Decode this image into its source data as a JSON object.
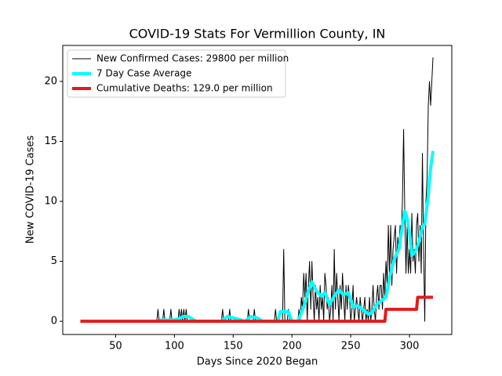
{
  "chart_data": {
    "type": "line",
    "title": "COVID-19 Stats For Vermillion County, IN",
    "xlabel": "Days Since 2020 Began",
    "ylabel": "New COVID-19 Cases",
    "xlim": [
      5,
      336
    ],
    "ylim": [
      -1.1,
      23.0
    ],
    "xticks": [
      50,
      100,
      150,
      200,
      250,
      300
    ],
    "yticks": [
      0,
      5,
      10,
      15,
      20
    ],
    "legend": "upper left",
    "series": [
      {
        "name": "New Confirmed Cases: 29800 per million",
        "color": "#000000",
        "linewidth": 1,
        "x": [
          20,
          85,
          86,
          87,
          90,
          91,
          92,
          96,
          97,
          98,
          103,
          104,
          105,
          106,
          107,
          108,
          109,
          110,
          111,
          112,
          140,
          141,
          142,
          146,
          147,
          148,
          162,
          163,
          164,
          167,
          168,
          169,
          185,
          186,
          187,
          192,
          193,
          194,
          196,
          197,
          198,
          205,
          206,
          207,
          208,
          209,
          210,
          211,
          212,
          213,
          214,
          215,
          216,
          217,
          218,
          219,
          220,
          221,
          222,
          223,
          224,
          225,
          226,
          227,
          228,
          229,
          230,
          231,
          232,
          233,
          234,
          235,
          236,
          237,
          238,
          239,
          240,
          241,
          242,
          243,
          244,
          245,
          246,
          247,
          248,
          249,
          250,
          251,
          252,
          253,
          254,
          255,
          256,
          257,
          258,
          259,
          260,
          261,
          262,
          263,
          264,
          265,
          266,
          267,
          268,
          269,
          270,
          271,
          272,
          273,
          274,
          275,
          276,
          277,
          278,
          279,
          280,
          281,
          282,
          283,
          284,
          285,
          286,
          287,
          288,
          289,
          290,
          291,
          292,
          293,
          294,
          295,
          296,
          297,
          298,
          299,
          300,
          301,
          302,
          303,
          304,
          305,
          306,
          307,
          308,
          309,
          310,
          311,
          312,
          313,
          314,
          315,
          316,
          317,
          318,
          319,
          320
        ],
        "values": [
          0,
          0,
          1,
          0,
          0,
          1,
          0,
          0,
          1,
          0,
          0,
          1,
          0,
          1,
          0,
          1,
          0,
          1,
          0,
          0,
          0,
          1,
          0,
          0,
          1,
          0,
          0,
          1,
          0,
          0,
          1,
          0,
          0,
          1,
          0,
          0,
          6,
          0,
          0,
          1,
          0,
          0,
          1,
          0,
          2,
          1,
          4,
          2,
          4,
          0,
          3,
          5,
          1,
          5,
          2,
          0,
          3,
          1,
          2,
          0,
          3,
          1,
          2,
          0,
          4,
          3,
          1,
          2,
          0,
          1,
          3,
          0,
          6,
          1,
          4,
          2,
          0,
          3,
          1,
          4,
          2,
          0,
          3,
          1,
          3,
          2,
          0,
          1,
          3,
          0,
          1,
          2,
          1,
          0,
          2,
          1,
          0,
          1,
          2,
          0,
          1,
          0,
          2,
          0,
          1,
          3,
          1,
          0,
          2,
          3,
          1,
          3,
          3,
          1,
          4,
          2,
          5,
          3,
          8,
          4,
          8,
          3,
          6,
          7,
          8,
          4,
          7,
          6,
          8,
          7,
          10,
          16,
          9,
          4,
          8,
          4,
          6,
          4,
          9,
          5,
          6,
          4,
          8,
          9,
          5,
          8,
          4,
          14,
          6,
          0,
          10,
          12,
          18,
          20,
          18,
          20,
          22
        ]
      },
      {
        "name": "7 Day Case Average",
        "color": "#00ffff",
        "linewidth": 4,
        "x": [
          87,
          100,
          108,
          112,
          118,
          140,
          145,
          150,
          160,
          165,
          170,
          175,
          188,
          190,
          197,
          200,
          205,
          210,
          214,
          217,
          221,
          225,
          228,
          232,
          236,
          240,
          244,
          248,
          252,
          256,
          260,
          265,
          268,
          272,
          276,
          280,
          283,
          286,
          288,
          291,
          294,
          296,
          298,
          300,
          302,
          305,
          308,
          311,
          313,
          316,
          318,
          320
        ],
        "values": [
          0.1,
          0.1,
          0.4,
          0.4,
          0,
          0,
          0.4,
          0.3,
          0,
          0.4,
          0.3,
          0,
          0,
          0.8,
          0.8,
          0,
          0,
          1.2,
          2.5,
          3.3,
          2.5,
          2.1,
          2.4,
          1.4,
          2.1,
          2.6,
          2.2,
          2.4,
          1.2,
          1.3,
          1.0,
          0.6,
          0.7,
          1.4,
          1.7,
          2.0,
          3.6,
          4.8,
          5.4,
          6.0,
          8.0,
          9.2,
          8.6,
          7.4,
          5.5,
          5.8,
          6.6,
          7.9,
          8.1,
          10.5,
          12.8,
          14.2
        ]
      },
      {
        "name": "Cumulative Deaths: 129.0 per million",
        "color": "#e31a1c",
        "linewidth": 4,
        "x": [
          20,
          279,
          280,
          306,
          307,
          320
        ],
        "values": [
          0,
          0,
          1,
          1,
          2,
          2
        ]
      }
    ]
  }
}
